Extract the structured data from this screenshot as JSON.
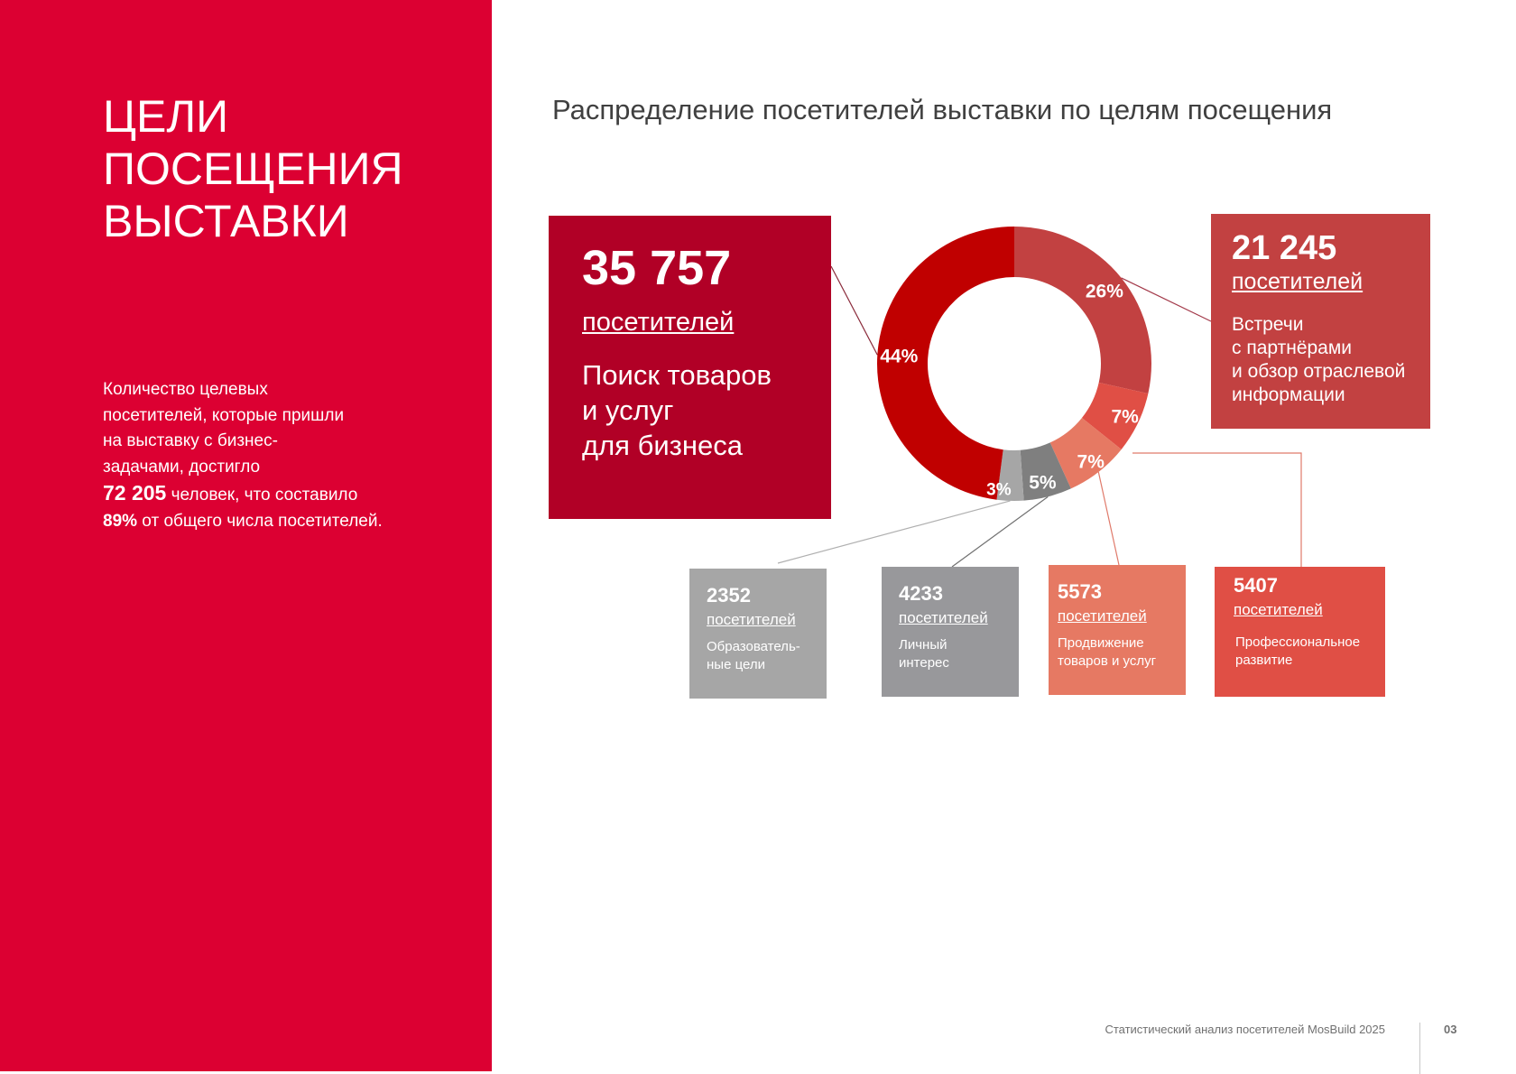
{
  "sidebar": {
    "title_lines": [
      "ЦЕЛИ",
      "ПОСЕЩЕНИЯ",
      "ВЫСТАВКИ"
    ],
    "summary_lines": [
      "Количество целевых",
      "посетителей, которые пришли",
      "на выставку  с бизнес-",
      "задачами, достигло"
    ],
    "summary_number": "72 205",
    "summary_after_number": " человек, что  составило",
    "summary_percent": "89%",
    "summary_tail": " от общего числа посетителей."
  },
  "chart_data": {
    "type": "pie",
    "title": "Распределение посетителей выставки по целям посещения",
    "slices": [
      {
        "label": "Встречи\nс партнёрами\nи обзор отраслевой\nинформации",
        "value": 21245,
        "percent": "26%",
        "color": "#c24141"
      },
      {
        "label": "Профессиональное\nразвитие",
        "value": 5407,
        "percent": "7%",
        "color": "#e04f45"
      },
      {
        "label": "Продвижение\nтоваров и услуг",
        "value": 5573,
        "percent": "7%",
        "color": "#e67963"
      },
      {
        "label": "Личный\nинтерес",
        "value": 4233,
        "percent": "5%",
        "color": "#7f7f7f"
      },
      {
        "label": "Образователь-\nные цели",
        "value": 2352,
        "percent": "3%",
        "color": "#a6a6a6"
      },
      {
        "label": "Поиск товаров\nи услуг\nдля бизнеса",
        "value": 35757,
        "percent": "44%",
        "color": "#c00000"
      }
    ]
  },
  "callouts": {
    "business": {
      "number": "35 757",
      "unit": "посетителей",
      "desc": "Поиск товаров\nи услуг\nдля бизнеса"
    },
    "meetings": {
      "number": "21 245",
      "unit": "посетителей",
      "desc": "Встречи\nс партнёрами\nи обзор отраслевой\nинформации"
    },
    "education": {
      "number": "2352",
      "unit": "посетителей",
      "desc": "Образователь-\nные цели"
    },
    "personal": {
      "number": "4233",
      "unit": "посетителей",
      "desc": "Личный\nинтерес"
    },
    "promotion": {
      "number": "5573",
      "unit": "посетителей",
      "desc": "Продвижение\nтоваров и услуг"
    },
    "professional": {
      "number": "5407",
      "unit": "посетителей",
      "desc": "Профессиональное\nразвитие"
    }
  },
  "footer": {
    "text": "Статистический анализ посетителей MosBuild 2025",
    "page_number": "03"
  }
}
